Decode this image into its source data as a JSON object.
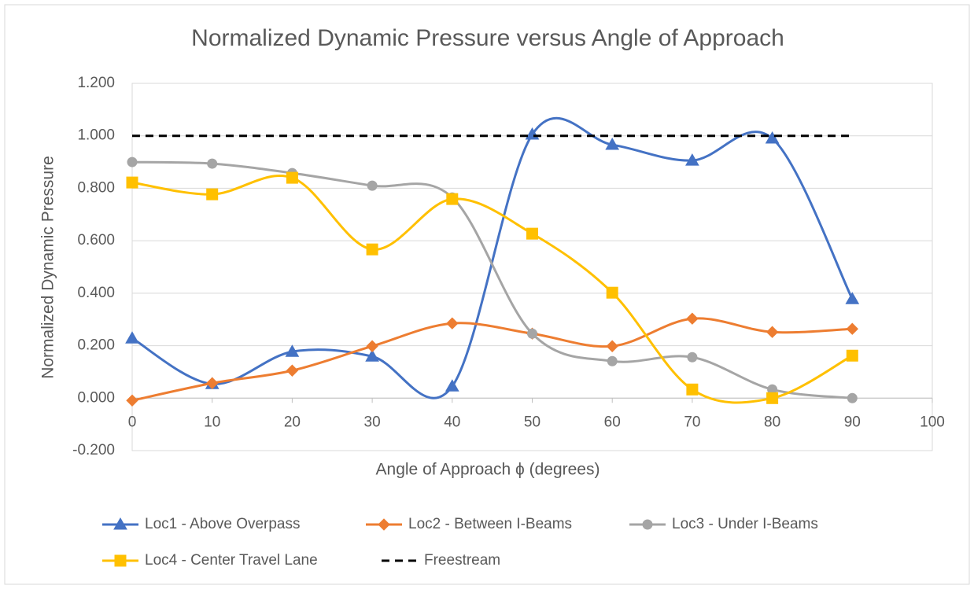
{
  "chart_data": {
    "type": "line",
    "title": "Normalized Dynamic Pressure versus Angle of Approach",
    "x_label": "Angle of Approach ϕ (degrees)",
    "y_label": "Normalized Dynamic Pressure",
    "x": [
      0,
      10,
      20,
      30,
      40,
      50,
      60,
      70,
      80,
      90
    ],
    "xlim": [
      0,
      100
    ],
    "xticks": [
      0,
      10,
      20,
      30,
      40,
      50,
      60,
      70,
      80,
      90,
      100
    ],
    "ylim": [
      -0.2,
      1.2
    ],
    "yticks": [
      {
        "value": -0.2,
        "label": "-0.200"
      },
      {
        "value": 0,
        "label": "0.000"
      },
      {
        "value": 0.2,
        "label": "0.200"
      },
      {
        "value": 0.4,
        "label": "0.400"
      },
      {
        "value": 0.6,
        "label": "0.600"
      },
      {
        "value": 0.8,
        "label": "0.800"
      },
      {
        "value": 1.0,
        "label": "1.000"
      },
      {
        "value": 1.2,
        "label": "1.200"
      }
    ],
    "grid": true,
    "smooth": true,
    "legend": "bottom",
    "series": [
      {
        "name": "Loc1 - Above Overpass",
        "color": "#4472c4",
        "marker": "triangle",
        "values": [
          0.228,
          0.054,
          0.177,
          0.159,
          0.045,
          1.005,
          0.966,
          0.906,
          0.99,
          0.378
        ]
      },
      {
        "name": "Loc2 - Between I-Beams",
        "color": "#ed7d31",
        "marker": "diamond",
        "values": [
          -0.009,
          0.057,
          0.105,
          0.198,
          0.285,
          0.246,
          0.198,
          0.303,
          0.252,
          0.264
        ]
      },
      {
        "name": "Loc3 - Under I-Beams",
        "color": "#a5a5a5",
        "marker": "circle",
        "values": [
          0.9,
          0.894,
          0.858,
          0.81,
          0.765,
          0.246,
          0.141,
          0.156,
          0.033,
          0.0
        ]
      },
      {
        "name": "Loc4 - Center Travel Lane",
        "color": "#ffc000",
        "marker": "square",
        "values": [
          0.822,
          0.777,
          0.84,
          0.567,
          0.759,
          0.627,
          0.402,
          0.033,
          0.0,
          0.162
        ]
      },
      {
        "name": "Freestream",
        "color": "#000000",
        "marker": "none",
        "dash": true,
        "values": [
          1.0,
          1.0,
          1.0,
          1.0,
          1.0,
          1.0,
          1.0,
          1.0,
          1.0,
          1.0
        ]
      }
    ]
  }
}
